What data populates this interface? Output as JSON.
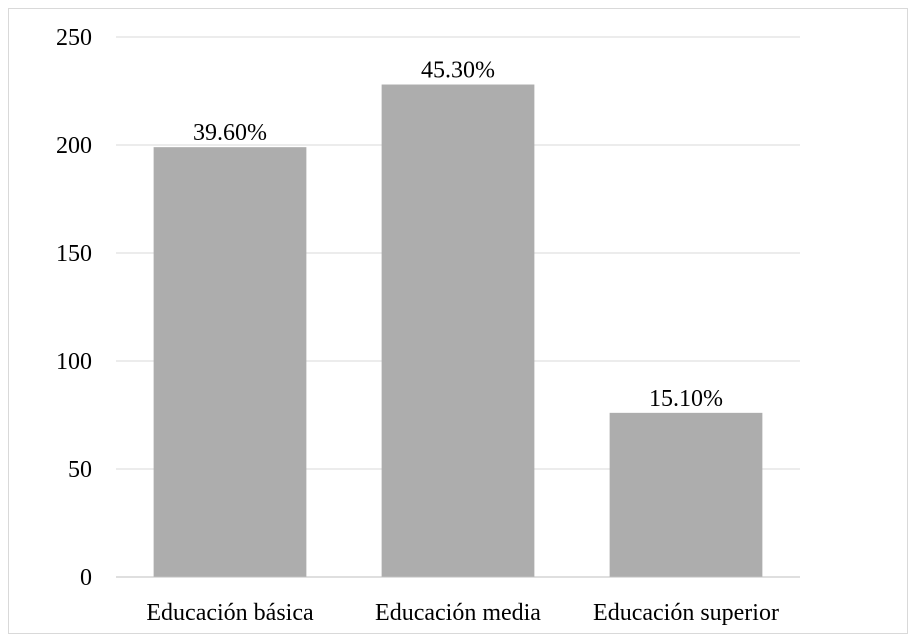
{
  "chart_data": {
    "type": "bar",
    "title": "",
    "xlabel": "",
    "ylabel": "",
    "categories": [
      "Educación básica",
      "Educación media",
      "Educación superior"
    ],
    "values": [
      199,
      228,
      76
    ],
    "data_labels": [
      "39.60%",
      "45.30%",
      "15.10%"
    ],
    "ylim": [
      0,
      250
    ],
    "yticks": [
      0,
      50,
      100,
      150,
      200,
      250
    ],
    "ytick_labels": [
      "0",
      "50",
      "100",
      "150",
      "200",
      "250"
    ],
    "grid": true,
    "legend": "none",
    "colors": {
      "bar": "#adadad",
      "grid": "#d9d9d9",
      "axis": "#bfbfbf",
      "text": "#000000"
    }
  }
}
